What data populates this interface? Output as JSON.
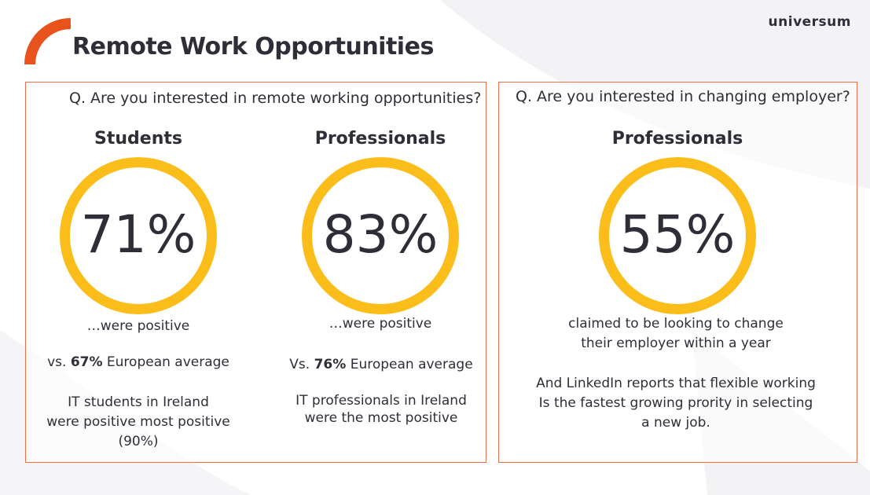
{
  "header": {
    "title": "Remote Work Opportunities",
    "logo_text": "universum",
    "accent_color": "#e8521c"
  },
  "colors": {
    "ring": "#fbbd19",
    "panel_border": "#e8704a"
  },
  "left_panel": {
    "question": "Q. Are you interested in remote working opportunities?",
    "students": {
      "heading": "Students",
      "percent": "71%",
      "caption": "…were positive",
      "compare_prefix": "vs. ",
      "compare_value": "67%",
      "compare_suffix": " European average",
      "note_line1": "IT students in Ireland",
      "note_line2": "were positive most positive",
      "note_line3": "(90%)"
    },
    "professionals": {
      "heading": "Professionals",
      "percent": "83%",
      "caption": "…were positive",
      "compare_prefix": "Vs. ",
      "compare_value": "76%",
      "compare_suffix": " European average",
      "note_line1": "IT professionals in Ireland",
      "note_line2": "were the most positive"
    }
  },
  "right_panel": {
    "question": "Q. Are you interested in changing employer?",
    "heading": "Professionals",
    "percent": "55%",
    "caption_line1": "claimed to be looking to change",
    "caption_line2": "their employer within a year",
    "note_line1": "And LinkedIn reports that flexible working",
    "note_line2": "Is the fastest growing prority in selecting",
    "note_line3": "a new job."
  }
}
